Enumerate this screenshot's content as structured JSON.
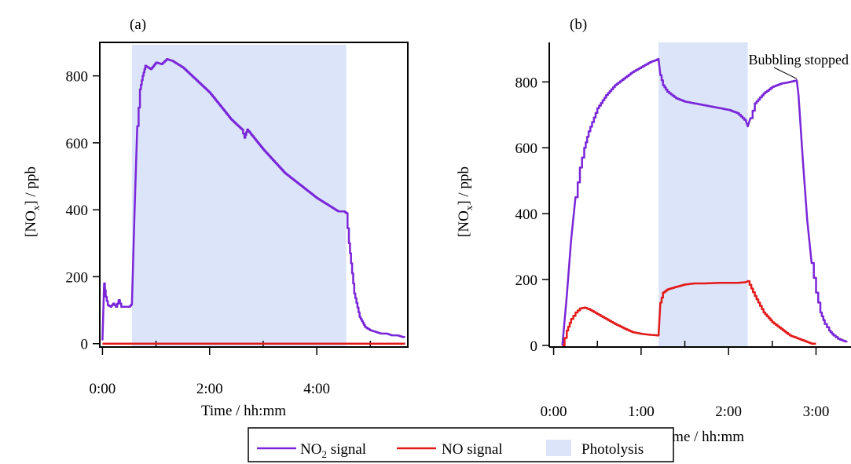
{
  "legend": {
    "items": [
      {
        "name_main": "NO",
        "name_sub": "2",
        "name_rest": " signal",
        "color": "#7a26d9",
        "kind": "line"
      },
      {
        "name_main": "NO signal",
        "name_sub": "",
        "name_rest": "",
        "color": "#e31a1a",
        "kind": "line"
      },
      {
        "name_main": "Photolysis",
        "name_sub": "",
        "name_rest": "",
        "color": "#dce4f9",
        "kind": "patch"
      }
    ]
  },
  "chart_data": [
    {
      "type": "line",
      "panel_label": "(a)",
      "xlabel": "Time / hh:mm",
      "ylabel_main": "[NO",
      "ylabel_sub": "x",
      "ylabel_rest": "] / ppb",
      "x_unit": "hours",
      "xlim": [
        -0.05,
        5.7
      ],
      "ylim": [
        -10,
        900
      ],
      "x_ticks_major": [
        0,
        2,
        4
      ],
      "x_tick_labels": [
        "0:00",
        "2:00",
        "4:00"
      ],
      "x_ticks_minor": [
        1,
        3,
        5
      ],
      "y_ticks": [
        0,
        200,
        400,
        600,
        800
      ],
      "y_tick_labels": [
        "0",
        "200",
        "400",
        "600",
        "800"
      ],
      "shaded_region": {
        "label": "Photolysis",
        "x_start": 0.55,
        "x_end": 4.55
      },
      "series": [
        {
          "name": "NO2 signal",
          "color": "#7a26d9",
          "x": [
            0.0,
            0.03,
            0.06,
            0.1,
            0.15,
            0.2,
            0.25,
            0.3,
            0.35,
            0.4,
            0.45,
            0.5,
            0.55,
            0.6,
            0.65,
            0.7,
            0.75,
            0.8,
            0.9,
            1.0,
            1.1,
            1.2,
            1.3,
            1.4,
            1.5,
            1.6,
            1.7,
            1.8,
            2.0,
            2.2,
            2.4,
            2.6,
            2.65,
            2.7,
            2.8,
            3.0,
            3.2,
            3.4,
            3.6,
            3.8,
            4.0,
            4.2,
            4.4,
            4.5,
            4.55,
            4.6,
            4.7,
            4.8,
            4.9,
            5.0,
            5.1,
            5.2,
            5.3,
            5.4,
            5.5,
            5.6,
            5.65
          ],
          "y": [
            10,
            180,
            140,
            115,
            110,
            120,
            110,
            130,
            110,
            110,
            110,
            110,
            120,
            400,
            650,
            760,
            800,
            830,
            820,
            840,
            835,
            850,
            845,
            835,
            825,
            810,
            795,
            780,
            750,
            710,
            670,
            640,
            615,
            640,
            620,
            580,
            545,
            510,
            485,
            460,
            435,
            415,
            395,
            395,
            390,
            300,
            150,
            80,
            50,
            40,
            35,
            30,
            30,
            25,
            25,
            20,
            20
          ]
        },
        {
          "name": "NO signal",
          "color": "#e31a1a",
          "x": [
            0.0,
            5.65
          ],
          "y": [
            0,
            0
          ]
        }
      ]
    },
    {
      "type": "line",
      "panel_label": "(b)",
      "xlabel": "Time / hh:mm",
      "ylabel_main": "[NO",
      "ylabel_sub": "x",
      "ylabel_rest": "] / ppb",
      "x_unit": "hours",
      "xlim": [
        -0.05,
        3.4
      ],
      "ylim": [
        -5,
        920
      ],
      "x_ticks_major": [
        0,
        1,
        2,
        3
      ],
      "x_tick_labels": [
        "0:00",
        "1:00",
        "2:00",
        "3:00"
      ],
      "x_ticks_minor": [
        0.5,
        1.5,
        2.5
      ],
      "y_ticks": [
        0,
        200,
        400,
        600,
        800
      ],
      "y_tick_labels": [
        "0",
        "200",
        "400",
        "600",
        "800"
      ],
      "shaded_region": {
        "label": "Photolysis",
        "x_start": 1.2,
        "x_end": 2.22
      },
      "annotation": {
        "text": "Bubbling stopped",
        "x": 2.78,
        "y": 800
      },
      "series": [
        {
          "name": "NO2 signal",
          "color": "#7a26d9",
          "x": [
            0.1,
            0.15,
            0.2,
            0.25,
            0.3,
            0.35,
            0.4,
            0.5,
            0.6,
            0.7,
            0.8,
            0.9,
            1.0,
            1.1,
            1.2,
            1.22,
            1.25,
            1.3,
            1.4,
            1.5,
            1.6,
            1.7,
            1.8,
            1.9,
            2.0,
            2.1,
            2.2,
            2.22,
            2.25,
            2.3,
            2.4,
            2.5,
            2.6,
            2.7,
            2.78,
            2.8,
            2.85,
            2.9,
            2.95,
            3.0,
            3.05,
            3.1,
            3.15,
            3.2,
            3.25,
            3.3,
            3.35
          ],
          "y": [
            0,
            150,
            320,
            450,
            540,
            600,
            650,
            720,
            760,
            790,
            810,
            830,
            845,
            860,
            870,
            820,
            790,
            770,
            750,
            740,
            735,
            730,
            725,
            720,
            715,
            705,
            680,
            665,
            690,
            735,
            765,
            785,
            795,
            800,
            805,
            760,
            560,
            380,
            250,
            160,
            100,
            65,
            45,
            30,
            20,
            15,
            10
          ]
        },
        {
          "name": "NO signal",
          "color": "#e31a1a",
          "x": [
            0.1,
            0.15,
            0.2,
            0.25,
            0.3,
            0.35,
            0.4,
            0.5,
            0.6,
            0.7,
            0.8,
            0.9,
            1.0,
            1.1,
            1.2,
            1.22,
            1.25,
            1.3,
            1.4,
            1.5,
            1.6,
            1.7,
            1.8,
            1.9,
            2.0,
            2.1,
            2.2,
            2.22,
            2.3,
            2.4,
            2.5,
            2.6,
            2.7,
            2.8,
            2.9,
            2.95,
            3.0
          ],
          "y": [
            0,
            45,
            80,
            100,
            112,
            115,
            110,
            95,
            80,
            65,
            52,
            40,
            35,
            32,
            30,
            130,
            160,
            170,
            178,
            185,
            188,
            188,
            189,
            190,
            190,
            190,
            192,
            195,
            150,
            100,
            70,
            50,
            30,
            20,
            10,
            5,
            5
          ]
        }
      ]
    }
  ]
}
